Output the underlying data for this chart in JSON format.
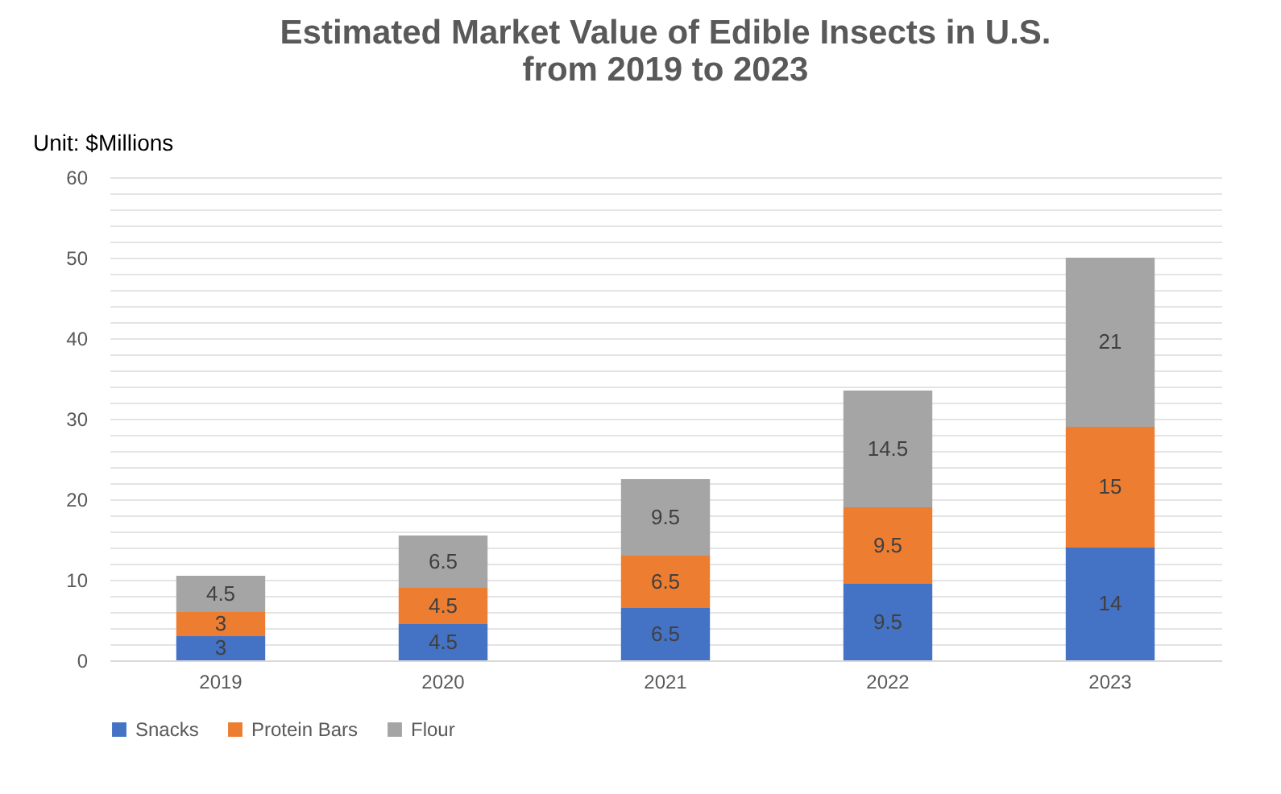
{
  "chart_data": {
    "type": "bar",
    "stacked": true,
    "title": "Estimated Market Value of Edible Insects in U.S.\nfrom 2019 to 2023",
    "ylabel": "Unit: $Millions",
    "categories": [
      "2019",
      "2020",
      "2021",
      "2022",
      "2023"
    ],
    "series": [
      {
        "name": "Snacks",
        "color": "#4472c4",
        "values": [
          3,
          4.5,
          6.5,
          9.5,
          14
        ]
      },
      {
        "name": "Protein Bars",
        "color": "#ed7d31",
        "values": [
          3,
          4.5,
          6.5,
          9.5,
          15
        ]
      },
      {
        "name": "Flour",
        "color": "#a5a5a5",
        "values": [
          4.5,
          6.5,
          9.5,
          14.5,
          21
        ]
      }
    ],
    "ylim": [
      0,
      60
    ],
    "yticks": [
      0,
      {
        "value": 2,
        "label": null
      },
      {
        "value": 4,
        "label": null
      },
      {
        "value": 6,
        "label": null
      },
      {
        "value": 8,
        "label": null
      },
      10,
      {
        "value": 12,
        "label": null
      },
      {
        "value": 14,
        "label": null
      },
      {
        "value": 16,
        "label": null
      },
      {
        "value": 18,
        "label": null
      },
      20,
      {
        "value": 22,
        "label": null
      },
      {
        "value": 24,
        "label": null
      },
      {
        "value": 26,
        "label": null
      },
      {
        "value": 28,
        "label": null
      },
      30,
      {
        "value": 32,
        "label": null
      },
      {
        "value": 34,
        "label": null
      },
      {
        "value": 36,
        "label": null
      },
      {
        "value": 38,
        "label": null
      },
      40,
      {
        "value": 42,
        "label": null
      },
      {
        "value": 44,
        "label": null
      },
      {
        "value": 46,
        "label": null
      },
      {
        "value": 48,
        "label": null
      },
      50,
      {
        "value": 52,
        "label": null
      },
      {
        "value": 54,
        "label": null
      },
      {
        "value": 56,
        "label": null
      },
      {
        "value": 58,
        "label": null
      },
      60
    ],
    "grid": true,
    "legend": "bottom",
    "data_labels": true
  }
}
